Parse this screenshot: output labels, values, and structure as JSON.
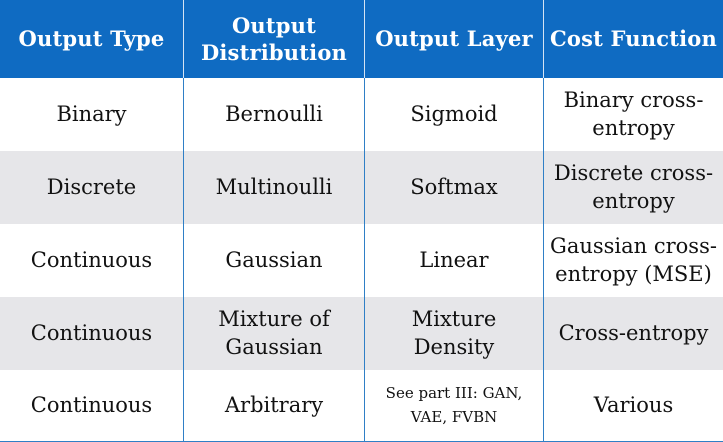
{
  "table": {
    "headers": [
      "Output Type",
      "Output Distribution",
      "Output Layer",
      "Cost Function"
    ],
    "rows": [
      [
        "Binary",
        "Bernoulli",
        "Sigmoid",
        "Binary cross-entropy"
      ],
      [
        "Discrete",
        "Multinoulli",
        "Softmax",
        "Discrete cross-entropy"
      ],
      [
        "Continuous",
        "Gaussian",
        "Linear",
        "Gaussian cross-entropy (MSE)"
      ],
      [
        "Continuous",
        "Mixture of Gaussian",
        "Mixture Density",
        "Cross-entropy"
      ],
      [
        "Continuous",
        "Arbitrary",
        "See part III: GAN, VAE, FVBN",
        "Various"
      ]
    ]
  },
  "colors": {
    "header_bg": "#0f6bc2",
    "header_text": "#ffffff",
    "stripe_bg": "#e6e6e9",
    "divider": "#2f7fc6"
  }
}
